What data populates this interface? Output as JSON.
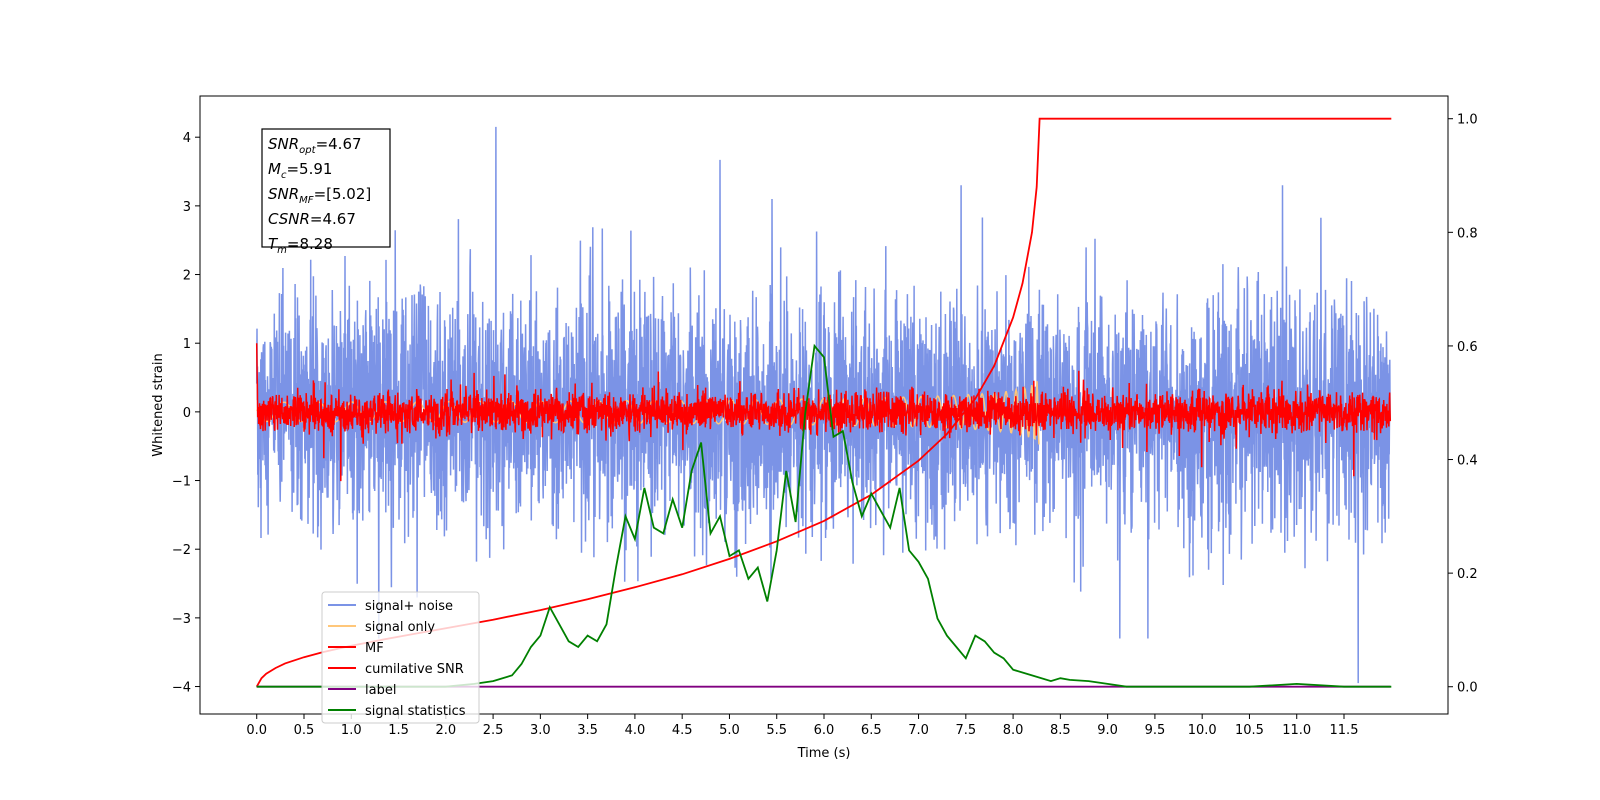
{
  "chart_data": {
    "type": "line",
    "xlabel": "Time (s)",
    "ylabel_left": "Whitened strain",
    "ylabel_right": "",
    "xlim": [
      -0.6,
      12.6
    ],
    "ylim_left": [
      -4.4,
      4.6
    ],
    "ylim_right": [
      -0.048,
      1.04
    ],
    "x_ticks": [
      "0.0",
      "0.5",
      "1.0",
      "1.5",
      "2.0",
      "2.5",
      "3.0",
      "3.5",
      "4.0",
      "4.5",
      "5.0",
      "5.5",
      "6.0",
      "6.5",
      "7.0",
      "7.5",
      "8.0",
      "8.5",
      "9.0",
      "9.5",
      "10.0",
      "10.5",
      "11.0",
      "11.5"
    ],
    "y_ticks_left": [
      "4",
      "3",
      "2",
      "1",
      "0",
      "−1",
      "−2",
      "−3",
      "−4"
    ],
    "y_ticks_right": [
      "1.0",
      "0.8",
      "0.6",
      "0.4",
      "0.2",
      "0.0"
    ],
    "legend_position": "lower left",
    "grid": false,
    "annotation": {
      "lines": [
        {
          "base": "SNR",
          "sub": "opt",
          "value": "=4.67"
        },
        {
          "base": "M",
          "sub": "c",
          "value": "=5.91"
        },
        {
          "base": "SNR",
          "sub": "MF",
          "value": "=[5.02]"
        },
        {
          "base": "CSNR",
          "sub": "",
          "value": "=4.67"
        },
        {
          "base": "T",
          "sub": "m",
          "value": "=8.28"
        }
      ]
    },
    "series": [
      {
        "name": "signal+ noise",
        "axis": "left",
        "color": "#7b93e6",
        "kind": "noise",
        "description_values": {
          "t_start": 0.0,
          "t_end": 11.99,
          "std": 0.85,
          "peak_max": 4.15,
          "peak_min": -3.95
        }
      },
      {
        "name": "signal only",
        "axis": "left",
        "color": "#ffc77a",
        "kind": "chirp",
        "description_values": {
          "t_start": 0.0,
          "t_end": 8.28,
          "amplitude_end": 0.5
        }
      },
      {
        "name": "MF",
        "axis": "left",
        "color": "#ff0000",
        "kind": "mf",
        "description_values": {
          "t_start": 0.0,
          "t_end": 11.99,
          "std": 0.15,
          "start_value": 1.0
        }
      },
      {
        "name": "cumilative SNR",
        "axis": "right",
        "color": "#ff0000",
        "x": [
          0,
          0.05,
          0.1,
          0.2,
          0.3,
          0.5,
          0.7,
          1.0,
          1.3,
          1.6,
          2.0,
          2.5,
          3.0,
          3.5,
          4.0,
          4.5,
          5.0,
          5.5,
          6.0,
          6.5,
          7.0,
          7.3,
          7.6,
          7.8,
          8.0,
          8.1,
          8.2,
          8.25,
          8.28,
          8.5,
          9.0,
          10.0,
          11.0,
          12.0
        ],
        "y": [
          0,
          0.015,
          0.023,
          0.033,
          0.041,
          0.052,
          0.061,
          0.072,
          0.082,
          0.091,
          0.103,
          0.118,
          0.135,
          0.154,
          0.175,
          0.198,
          0.225,
          0.256,
          0.292,
          0.338,
          0.398,
          0.445,
          0.507,
          0.565,
          0.65,
          0.71,
          0.8,
          0.88,
          1.0,
          1.0,
          1.0,
          1.0,
          1.0,
          1.0
        ]
      },
      {
        "name": "label",
        "axis": "right",
        "color": "#800080",
        "x": [
          0,
          11.99
        ],
        "y": [
          0,
          0
        ]
      },
      {
        "name": "signal statistics",
        "axis": "right",
        "color": "#008000",
        "x": [
          0,
          0.5,
          1.0,
          1.5,
          2.0,
          2.3,
          2.5,
          2.7,
          2.8,
          2.9,
          3.0,
          3.1,
          3.2,
          3.3,
          3.4,
          3.5,
          3.6,
          3.7,
          3.8,
          3.9,
          4.0,
          4.1,
          4.2,
          4.3,
          4.4,
          4.5,
          4.6,
          4.7,
          4.8,
          4.9,
          5.0,
          5.1,
          5.2,
          5.3,
          5.4,
          5.5,
          5.6,
          5.7,
          5.8,
          5.9,
          6.0,
          6.1,
          6.2,
          6.3,
          6.4,
          6.5,
          6.6,
          6.7,
          6.8,
          6.9,
          7.0,
          7.1,
          7.2,
          7.3,
          7.4,
          7.5,
          7.6,
          7.7,
          7.8,
          7.9,
          8.0,
          8.2,
          8.4,
          8.5,
          8.6,
          8.8,
          9.0,
          9.2,
          9.5,
          10.0,
          10.5,
          11.0,
          11.5,
          12.0
        ],
        "y": [
          0,
          0,
          0,
          0,
          0,
          0.005,
          0.01,
          0.02,
          0.04,
          0.07,
          0.09,
          0.14,
          0.11,
          0.08,
          0.07,
          0.09,
          0.08,
          0.11,
          0.21,
          0.3,
          0.26,
          0.35,
          0.28,
          0.27,
          0.33,
          0.28,
          0.38,
          0.43,
          0.27,
          0.3,
          0.23,
          0.24,
          0.19,
          0.21,
          0.15,
          0.24,
          0.38,
          0.29,
          0.48,
          0.6,
          0.58,
          0.44,
          0.45,
          0.36,
          0.3,
          0.34,
          0.31,
          0.28,
          0.35,
          0.24,
          0.22,
          0.19,
          0.12,
          0.09,
          0.07,
          0.05,
          0.09,
          0.08,
          0.06,
          0.05,
          0.03,
          0.02,
          0.01,
          0.015,
          0.012,
          0.01,
          0.005,
          0,
          0,
          0,
          0,
          0.005,
          0,
          0
        ]
      }
    ]
  }
}
